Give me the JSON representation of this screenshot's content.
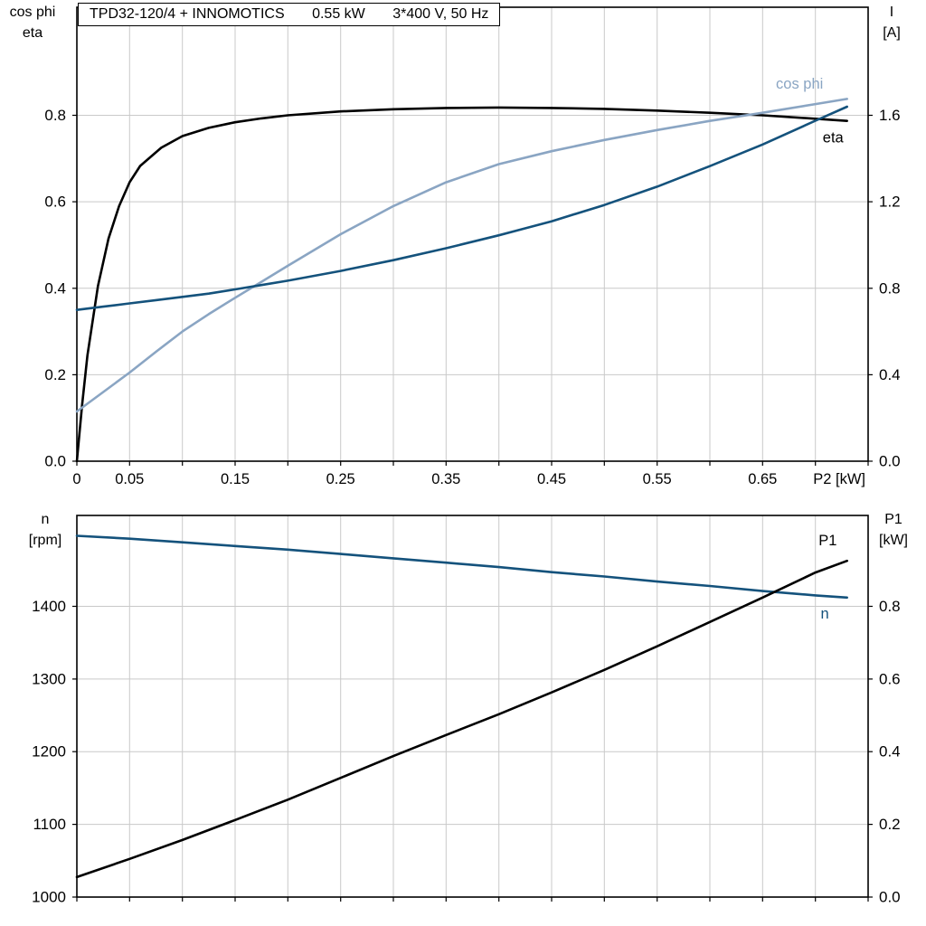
{
  "title": {
    "model": "TPD32-120/4 + INNOMOTICS",
    "power": "0.55 kW",
    "voltage": "3*400 V, 50 Hz"
  },
  "colors": {
    "grid": "#c9c9c9",
    "frame": "#000000",
    "eta": "#000000",
    "cos_phi": "#8aa5c3",
    "current": "#14527c"
  },
  "chart_data": [
    {
      "type": "line",
      "title": "TPD32-120/4 + INNOMOTICS 0.55 kW 3*400 V, 50 Hz",
      "x_axis": {
        "label": "P2 [kW]",
        "min": 0,
        "max": 0.75,
        "grid_step": 0.05,
        "ticks": [
          {
            "v": 0,
            "t": "0"
          },
          {
            "v": 0.05,
            "t": "0.05"
          },
          {
            "v": 0.15,
            "t": "0.15"
          },
          {
            "v": 0.25,
            "t": "0.25"
          },
          {
            "v": 0.35,
            "t": "0.35"
          },
          {
            "v": 0.45,
            "t": "0.45"
          },
          {
            "v": 0.55,
            "t": "0.55"
          },
          {
            "v": 0.65,
            "t": "0.65"
          }
        ]
      },
      "y_left": {
        "label_lines": [
          "cos phi",
          "eta"
        ],
        "min": 0,
        "max": 1.05,
        "ticks": [
          {
            "v": 0,
            "t": "0.0"
          },
          {
            "v": 0.2,
            "t": "0.2"
          },
          {
            "v": 0.4,
            "t": "0.4"
          },
          {
            "v": 0.6,
            "t": "0.6"
          },
          {
            "v": 0.8,
            "t": "0.8"
          }
        ]
      },
      "y_right": {
        "label_lines": [
          "I",
          "[A]"
        ],
        "min": 0,
        "max": 2.1,
        "ticks": [
          {
            "v": 0,
            "t": "0.0"
          },
          {
            "v": 0.4,
            "t": "0.4"
          },
          {
            "v": 0.8,
            "t": "0.8"
          },
          {
            "v": 1.2,
            "t": "1.2"
          },
          {
            "v": 1.6,
            "t": "1.6"
          }
        ]
      },
      "series": [
        {
          "name": "eta",
          "axis": "left",
          "color": "#000000",
          "x": [
            0,
            0.005,
            0.01,
            0.02,
            0.03,
            0.04,
            0.05,
            0.06,
            0.08,
            0.1,
            0.125,
            0.15,
            0.175,
            0.2,
            0.25,
            0.3,
            0.35,
            0.4,
            0.45,
            0.5,
            0.55,
            0.6,
            0.65,
            0.7,
            0.73
          ],
          "y": [
            0,
            0.13,
            0.245,
            0.405,
            0.515,
            0.59,
            0.645,
            0.683,
            0.725,
            0.752,
            0.771,
            0.784,
            0.793,
            0.8,
            0.809,
            0.814,
            0.817,
            0.818,
            0.817,
            0.815,
            0.811,
            0.806,
            0.8,
            0.792,
            0.787
          ]
        },
        {
          "name": "cos phi",
          "axis": "left",
          "color": "#8aa5c3",
          "x": [
            0,
            0.025,
            0.05,
            0.075,
            0.1,
            0.125,
            0.15,
            0.175,
            0.2,
            0.25,
            0.3,
            0.35,
            0.4,
            0.45,
            0.5,
            0.55,
            0.6,
            0.65,
            0.7,
            0.73
          ],
          "y": [
            0.115,
            0.16,
            0.205,
            0.253,
            0.3,
            0.34,
            0.378,
            0.415,
            0.452,
            0.525,
            0.59,
            0.645,
            0.687,
            0.717,
            0.743,
            0.766,
            0.787,
            0.806,
            0.826,
            0.838
          ]
        },
        {
          "name": "I",
          "axis": "right",
          "color": "#14527c",
          "x": [
            0,
            0.025,
            0.05,
            0.075,
            0.1,
            0.125,
            0.15,
            0.175,
            0.2,
            0.25,
            0.3,
            0.35,
            0.4,
            0.45,
            0.5,
            0.55,
            0.6,
            0.65,
            0.7,
            0.73
          ],
          "y": [
            0.7,
            0.715,
            0.73,
            0.745,
            0.76,
            0.775,
            0.795,
            0.815,
            0.835,
            0.88,
            0.93,
            0.985,
            1.045,
            1.11,
            1.185,
            1.27,
            1.365,
            1.465,
            1.575,
            1.64
          ]
        }
      ],
      "curve_labels": [
        {
          "text": "cos phi",
          "color": "#8aa5c3",
          "axis": "left",
          "x": 0.685,
          "y": 0.862,
          "anchor": "middle"
        },
        {
          "text": "eta",
          "color": "#000000",
          "axis": "left",
          "x": 0.707,
          "y": 0.737,
          "anchor": "start"
        }
      ]
    },
    {
      "type": "line",
      "title": "Speed and input power vs shaft power",
      "x_axis": {
        "label": "",
        "min": 0,
        "max": 0.75,
        "grid_step": 0.05,
        "ticks": []
      },
      "y_left": {
        "label_lines": [
          "n",
          "[rpm]"
        ],
        "min": 1000,
        "max": 1525,
        "ticks": [
          {
            "v": 1000,
            "t": "1000"
          },
          {
            "v": 1100,
            "t": "1100"
          },
          {
            "v": 1200,
            "t": "1200"
          },
          {
            "v": 1300,
            "t": "1300"
          },
          {
            "v": 1400,
            "t": "1400"
          }
        ]
      },
      "y_right": {
        "label_lines": [
          "P1",
          "[kW]"
        ],
        "min": 0,
        "max": 1.05,
        "ticks": [
          {
            "v": 0,
            "t": "0.0"
          },
          {
            "v": 0.2,
            "t": "0.2"
          },
          {
            "v": 0.4,
            "t": "0.4"
          },
          {
            "v": 0.6,
            "t": "0.6"
          },
          {
            "v": 0.8,
            "t": "0.8"
          }
        ]
      },
      "series": [
        {
          "name": "n",
          "axis": "left",
          "color": "#14527c",
          "x": [
            0,
            0.05,
            0.1,
            0.15,
            0.2,
            0.25,
            0.3,
            0.35,
            0.4,
            0.45,
            0.5,
            0.55,
            0.6,
            0.65,
            0.7,
            0.73
          ],
          "y": [
            1497,
            1493,
            1488,
            1483,
            1478,
            1472,
            1466,
            1460,
            1454,
            1447,
            1441,
            1434,
            1428,
            1421,
            1415,
            1412
          ]
        },
        {
          "name": "P1",
          "axis": "right",
          "color": "#000000",
          "x": [
            0,
            0.05,
            0.1,
            0.15,
            0.2,
            0.25,
            0.3,
            0.35,
            0.4,
            0.45,
            0.5,
            0.55,
            0.6,
            0.65,
            0.7,
            0.73
          ],
          "y": [
            0.055,
            0.105,
            0.157,
            0.212,
            0.268,
            0.328,
            0.388,
            0.446,
            0.503,
            0.563,
            0.625,
            0.69,
            0.757,
            0.824,
            0.893,
            0.925
          ]
        }
      ],
      "curve_labels": [
        {
          "text": "P1",
          "color": "#000000",
          "axis": "right",
          "x": 0.703,
          "y": 0.968,
          "anchor": "start"
        },
        {
          "text": "n",
          "color": "#14527c",
          "axis": "left",
          "x": 0.705,
          "y": 1383,
          "anchor": "start"
        }
      ]
    }
  ]
}
